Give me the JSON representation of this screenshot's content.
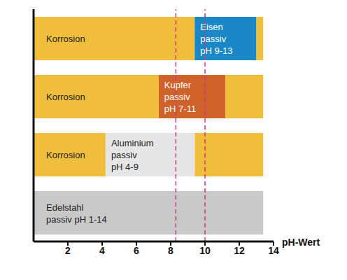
{
  "chart_data": {
    "type": "bar",
    "orientation": "horizontal",
    "stacked": true,
    "x_label": "pH-Wert",
    "categories": [
      null,
      null,
      null,
      null
    ],
    "xlim": [
      0,
      14
    ],
    "xticks": [
      2,
      4,
      6,
      8,
      10,
      12,
      14
    ],
    "tick_labels": "x",
    "grid": false,
    "series": [
      {
        "values": [
          9.4,
          7.3,
          4.2,
          13.4
        ],
        "colors": [
          "#efbf3c",
          "#efbf3c",
          "#efbf3c",
          "#c9c9c9"
        ],
        "labels": [
          [
            "Korrosion"
          ],
          [
            "Korrosion"
          ],
          [
            "Korrosion"
          ],
          [
            "Edelstahl",
            "passiv pH 1-14"
          ]
        ]
      },
      {
        "values": [
          3.6,
          3.9,
          5.2,
          null
        ],
        "colors": [
          "#1a87c6",
          "#cf6229",
          "#e6e6e6",
          null
        ],
        "labels": [
          [
            "Eisen",
            "passiv",
            "pH 9-13"
          ],
          [
            "Kupfer",
            "passiv",
            "pH 7-11"
          ],
          [
            "Aluminium",
            "passiv",
            "pH 4-9"
          ],
          null
        ]
      },
      {
        "values": [
          0.4,
          2.2,
          4.0,
          null
        ],
        "colors": [
          "#efbf3c",
          "#efbf3c",
          "#efbf3c",
          null
        ],
        "labels": [
          null,
          null,
          null,
          null
        ]
      }
    ],
    "reference_lines": {
      "values": [
        8.3,
        10
      ],
      "color": "#d6338a",
      "line_style": "dashed"
    }
  }
}
